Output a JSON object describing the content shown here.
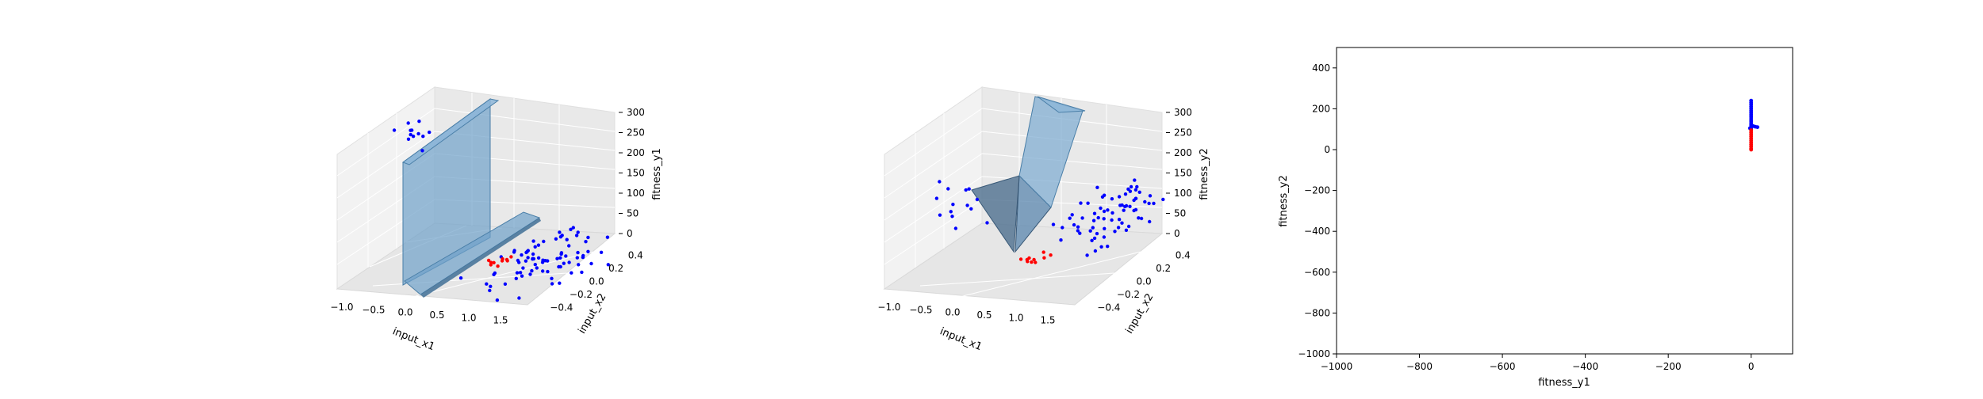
{
  "chart_data": [
    {
      "type": "scatter",
      "projection": "3d",
      "xlabel": "input_x1",
      "ylabel": "input_x2",
      "zlabel": "fitness_y1",
      "xticks": [
        "−1.0",
        "−0.5",
        "0.0",
        "0.5",
        "1.0",
        "1.5"
      ],
      "yticks": [
        "−0.4",
        "−0.2",
        "0.0",
        "0.2",
        "0.4"
      ],
      "zticks": [
        "0",
        "50",
        "100",
        "150",
        "200",
        "250",
        "300"
      ],
      "xlim": [
        -1.3,
        1.7
      ],
      "ylim": [
        -0.5,
        0.5
      ],
      "zlim": [
        0,
        300
      ],
      "surface_color": "#6fa1c9",
      "series": [
        {
          "color": "#0000ff",
          "cluster_points": [
            {
              "x": -0.9,
              "y": 0.0,
              "z": 280,
              "n": 12,
              "sx": 0.12,
              "sy": 0.08,
              "sz": 12
            },
            {
              "x": 1.1,
              "y": 0.05,
              "z": 5,
              "n": 80,
              "sx": 0.32,
              "sy": 0.22,
              "sz": 8
            }
          ]
        },
        {
          "color": "#ff0000",
          "cluster_points": [
            {
              "x": 0.45,
              "y": 0.0,
              "z": 8,
              "n": 10,
              "sx": 0.1,
              "sy": 0.05,
              "sz": 4
            }
          ]
        }
      ]
    },
    {
      "type": "scatter",
      "projection": "3d",
      "xlabel": "input_x1",
      "ylabel": "input_x2",
      "zlabel": "fitness_y2",
      "xticks": [
        "−1.0",
        "−0.5",
        "0.0",
        "0.5",
        "1.0",
        "1.5"
      ],
      "yticks": [
        "−0.4",
        "−0.2",
        "0.0",
        "0.2",
        "0.4"
      ],
      "zticks": [
        "0",
        "50",
        "100",
        "150",
        "200",
        "250",
        "300"
      ],
      "xlim": [
        -1.3,
        1.7
      ],
      "ylim": [
        -0.5,
        0.5
      ],
      "zlim": [
        0,
        300
      ],
      "surface_color": "#6fa1c9",
      "series": [
        {
          "color": "#0000ff",
          "cluster_points": [
            {
              "x": -0.8,
              "y": -0.1,
              "z": 130,
              "n": 14,
              "sx": 0.25,
              "sy": 0.08,
              "sz": 25
            },
            {
              "x": 1.2,
              "y": 0.2,
              "z": 90,
              "n": 70,
              "sx": 0.3,
              "sy": 0.2,
              "sz": 25
            }
          ]
        },
        {
          "color": "#ff0000",
          "cluster_points": [
            {
              "x": 0.3,
              "y": 0.0,
              "z": 10,
              "n": 10,
              "sx": 0.1,
              "sy": 0.05,
              "sz": 4
            }
          ]
        }
      ]
    },
    {
      "type": "scatter",
      "xlabel": "fitness_y1",
      "ylabel": "fitness_y2",
      "xlim": [
        -1000,
        100
      ],
      "ylim": [
        -1000,
        500
      ],
      "xticks": [
        -1000,
        -800,
        -600,
        -400,
        -200,
        0
      ],
      "yticks": [
        -1000,
        -800,
        -600,
        -400,
        -200,
        0,
        200,
        400
      ],
      "xticklabels": [
        "−1000",
        "−800",
        "−600",
        "−400",
        "−200",
        "0"
      ],
      "yticklabels": [
        "−1000",
        "−800",
        "−600",
        "−400",
        "−200",
        "0",
        "200",
        "400"
      ],
      "series": [
        {
          "color": "#0000ff",
          "points": [
            [
              0,
              240
            ],
            [
              0,
              230
            ],
            [
              0,
              220
            ],
            [
              0,
              210
            ],
            [
              0,
              200
            ],
            [
              0,
              190
            ],
            [
              0,
              180
            ],
            [
              0,
              170
            ],
            [
              0,
              160
            ],
            [
              0,
              150
            ],
            [
              0,
              140
            ],
            [
              0,
              130
            ],
            [
              0,
              120
            ],
            [
              0,
              110
            ],
            [
              5,
              115
            ],
            [
              10,
              112
            ],
            [
              15,
              110
            ],
            [
              -3,
              105
            ],
            [
              0,
              100
            ]
          ]
        },
        {
          "color": "#ff0000",
          "points": [
            [
              0,
              95
            ],
            [
              0,
              85
            ],
            [
              0,
              75
            ],
            [
              0,
              65
            ],
            [
              0,
              55
            ],
            [
              0,
              45
            ],
            [
              0,
              35
            ],
            [
              0,
              25
            ],
            [
              0,
              15
            ],
            [
              0,
              5
            ],
            [
              0,
              0
            ]
          ]
        }
      ]
    }
  ]
}
